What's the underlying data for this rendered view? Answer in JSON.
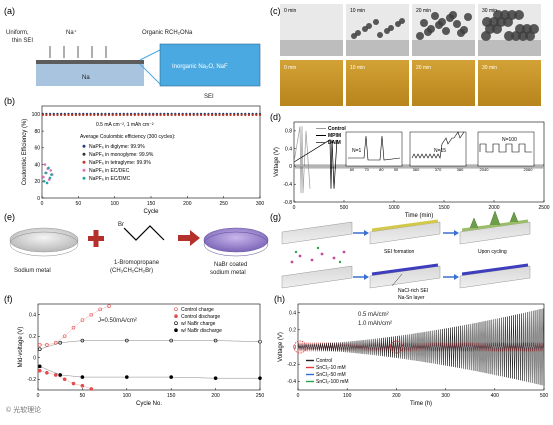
{
  "panels": {
    "a": {
      "letter": "(a)",
      "left_label": "Uniform,\nthin SEI",
      "ion_label": "Na⁺",
      "top_right_label": "Organic RCH₂ONa",
      "substrate_label": "Na",
      "inset_label": "Inorganic Na₂O, NaF",
      "sei_label": "SEI",
      "colors": {
        "na": "#a9c4de",
        "inset": "#4aa9e0",
        "sei": "#6d6d6d"
      }
    },
    "b": {
      "letter": "(b)",
      "condition": "0.5 mA cm⁻², 1 mAh cm⁻²",
      "avg_title": "Average Coulombic efficiency (300 cycles):",
      "legend": [
        {
          "text": "NaPF₆ in diglyme: 99.9%",
          "color": "#1f3f8c"
        },
        {
          "text": "NaPF₆ in monoglyme: 99.9%",
          "color": "#333333"
        },
        {
          "text": "NaPF₆ in tetraglyme: 99.9%",
          "color": "#c0392b"
        },
        {
          "text": "NaPF₆ in EC/DEC",
          "color": "#e072b8"
        },
        {
          "text": "NaPF₆ in EC/DMC",
          "color": "#2aa3a3"
        }
      ]
    },
    "c": {
      "letter": "(c)",
      "times": [
        "0 min",
        "10 min",
        "20 min",
        "30 min"
      ]
    },
    "d": {
      "letter": "(d)",
      "legend": [
        "Control",
        "MPIM",
        "DAIM"
      ],
      "inset_labels": [
        "N=1",
        "N=15",
        "N=100"
      ],
      "inset1_ticks": [
        "60",
        "70",
        "80",
        "90"
      ],
      "inset2_ticks": [
        "360",
        "370",
        "380"
      ],
      "inset3_ticks": [
        "2040",
        "2060"
      ]
    },
    "e": {
      "letter": "(e)",
      "metal_label": "Sodium metal",
      "reagent_label": "1-Bromopropane",
      "reagent_formula": "(CH₃CH₂CH₂Br)",
      "br_label": "Br",
      "product_label": "NaBr coated\nsodium metal"
    },
    "f": {
      "letter": "(f)",
      "current": "J=0.50mA/cm²",
      "legend": [
        {
          "text": "Control charge",
          "color": "#e34d4d",
          "hollow": true
        },
        {
          "text": "Control discharge",
          "color": "#e34d4d",
          "hollow": false
        },
        {
          "text": "w/ NaBr charge",
          "color": "#000000",
          "hollow": true
        },
        {
          "text": "w/ NaBr discharge",
          "color": "#000000",
          "hollow": false
        }
      ]
    },
    "g": {
      "letter": "(g)",
      "formation": "SEI formation",
      "cycling": "Upon cycling",
      "layer1": "NaCl-rich SEI",
      "layer2": "Na-Sn layer"
    },
    "h": {
      "letter": "(h)",
      "condition1": "0.5 mA/cm²",
      "condition2": "1.0 mAh/cm²",
      "legend": [
        {
          "text": "Control",
          "color": "#222222"
        },
        {
          "text": "SnCl₂-10 mM",
          "color": "#e13a3a"
        },
        {
          "text": "SnCl₂-50 mM",
          "color": "#2e6fd1"
        },
        {
          "text": "SnCl₂-100 mM",
          "color": "#2aa64a"
        }
      ]
    }
  },
  "watermark": "© 光软理论",
  "chart_data": [
    {
      "panel": "b",
      "type": "scatter",
      "xlabel": "Cycle",
      "ylabel": "Coulombic Efficiency (%)",
      "xlim": [
        0,
        300
      ],
      "ylim": [
        0,
        110
      ],
      "xticks": [
        0,
        50,
        100,
        150,
        200,
        250,
        300
      ],
      "yticks": [
        0,
        20,
        40,
        60,
        80,
        100
      ],
      "series": [
        {
          "name": "NaPF₆ in diglyme: 99.9%",
          "color": "#1f3f8c",
          "x_range": [
            1,
            300
          ],
          "value": 99.9
        },
        {
          "name": "NaPF₆ in monoglyme: 99.9%",
          "color": "#333333",
          "x_range": [
            1,
            300
          ],
          "value": 99.9
        },
        {
          "name": "NaPF₆ in tetraglyme: 99.9%",
          "color": "#c0392b",
          "x_range": [
            1,
            300
          ],
          "value": 99.9
        },
        {
          "name": "NaPF₆ in EC/DEC",
          "color": "#e072b8",
          "x": [
            2,
            4,
            6,
            8,
            10,
            12,
            14
          ],
          "y": [
            25,
            40,
            30,
            35,
            22,
            33,
            28
          ]
        },
        {
          "name": "NaPF₆ in EC/DMC",
          "color": "#2aa3a3",
          "x": [
            3,
            5,
            7,
            9,
            11,
            13
          ],
          "y": [
            20,
            30,
            18,
            36,
            24,
            28
          ]
        }
      ]
    },
    {
      "panel": "d",
      "type": "line",
      "xlabel": "Time (min)",
      "ylabel": "Voltage (V)",
      "xlim": [
        0,
        2500
      ],
      "ylim": [
        -0.8,
        1.0
      ],
      "xticks": [
        0,
        500,
        1000,
        1500,
        2000,
        2500
      ],
      "yticks": [
        -0.8,
        -0.4,
        0.0,
        0.4,
        0.8
      ],
      "series": [
        {
          "name": "Control",
          "color": "#999999",
          "x": [
            0,
            60,
            70,
            80,
            90,
            120,
            160
          ],
          "y": [
            0.1,
            0.9,
            -0.6,
            0.9,
            -0.6,
            0.8,
            -0.5
          ]
        },
        {
          "name": "MPIM",
          "color": "#000000",
          "x": [
            0,
            360,
            370,
            380,
            400,
            430
          ],
          "y": [
            0.1,
            0.6,
            -0.5,
            0.6,
            -0.5,
            0.6
          ]
        },
        {
          "name": "DAIM",
          "color": "#555555",
          "x_range": [
            0,
            2500
          ],
          "amplitude": 0.05
        }
      ]
    },
    {
      "panel": "f",
      "type": "scatter",
      "xlabel": "Cycle No.",
      "ylabel": "Mid-voltage (V)",
      "xlim": [
        0,
        250
      ],
      "ylim": [
        -0.3,
        0.5
      ],
      "xticks": [
        0,
        50,
        100,
        150,
        200,
        250
      ],
      "yticks": [
        -0.2,
        0.0,
        0.2,
        0.4
      ],
      "series": [
        {
          "name": "Control charge",
          "x": [
            2,
            10,
            20,
            30,
            40,
            50,
            60,
            70,
            80
          ],
          "y": [
            0.12,
            0.12,
            0.14,
            0.2,
            0.28,
            0.35,
            0.4,
            0.45,
            0.48
          ]
        },
        {
          "name": "Control discharge",
          "x": [
            2,
            10,
            20,
            30,
            40,
            50,
            60
          ],
          "y": [
            -0.12,
            -0.14,
            -0.16,
            -0.2,
            -0.24,
            -0.26,
            -0.29
          ]
        },
        {
          "name": "w/ NaBr charge",
          "x": [
            2,
            25,
            50,
            100,
            150,
            200,
            250
          ],
          "y": [
            0.08,
            0.14,
            0.16,
            0.16,
            0.16,
            0.16,
            0.15
          ]
        },
        {
          "name": "w/ NaBr discharge",
          "x": [
            2,
            25,
            50,
            100,
            150,
            200,
            250
          ],
          "y": [
            -0.08,
            -0.16,
            -0.18,
            -0.18,
            -0.18,
            -0.19,
            -0.19
          ]
        }
      ]
    },
    {
      "panel": "h",
      "type": "line",
      "xlabel": "Time (h)",
      "ylabel": "Voltage (V)",
      "xlim": [
        0,
        500
      ],
      "ylim": [
        -0.5,
        0.5
      ],
      "xticks": [
        0,
        100,
        200,
        300,
        400,
        500
      ],
      "yticks": [
        -0.4,
        -0.2,
        0.0,
        0.2,
        0.4
      ],
      "series": [
        {
          "name": "Control",
          "x_range": [
            0,
            500
          ],
          "amplitude_start": 0.03,
          "amplitude_end": 0.45
        },
        {
          "name": "SnCl₂-10 mM",
          "x_range": [
            0,
            500
          ],
          "amplitude": 0.05
        },
        {
          "name": "SnCl₂-50 mM",
          "x_range": [
            0,
            500
          ],
          "amplitude": 0.03
        },
        {
          "name": "SnCl₂-100 mM",
          "x_range": [
            0,
            500
          ],
          "amplitude": 0.02
        }
      ]
    }
  ]
}
